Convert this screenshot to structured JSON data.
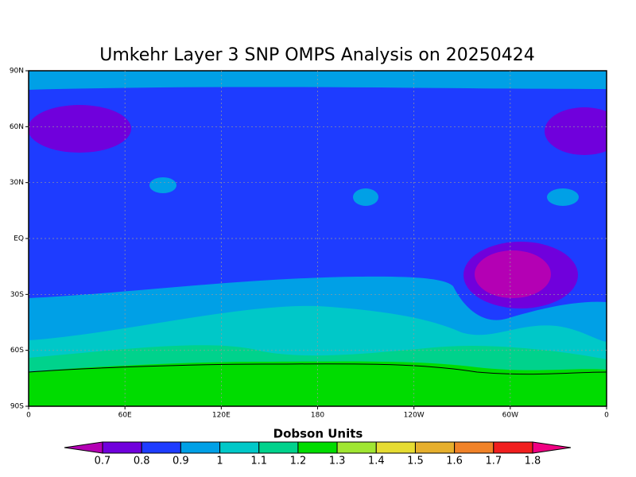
{
  "title": "Umkehr Layer 3 SNP OMPS Analysis on 20250424",
  "map": {
    "x_labels": [
      "0",
      "60E",
      "120E",
      "180",
      "120W",
      "60W",
      "0"
    ],
    "y_labels": [
      "90N",
      "60N",
      "30N",
      "EQ",
      "30S",
      "60S",
      "90S"
    ]
  },
  "colorbar": {
    "title": "Dobson Units",
    "levels": [
      0.7,
      0.8,
      0.9,
      1,
      1.1,
      1.2,
      1.3,
      1.4,
      1.5,
      1.6,
      1.7,
      1.8
    ],
    "colors": [
      "#b400b4",
      "#7000dc",
      "#1e3cff",
      "#00a0e6",
      "#00c8c8",
      "#00d28c",
      "#00dc00",
      "#a0e632",
      "#e6dc32",
      "#e6af2d",
      "#f08228",
      "#f01e1e",
      "#f00082"
    ]
  }
}
